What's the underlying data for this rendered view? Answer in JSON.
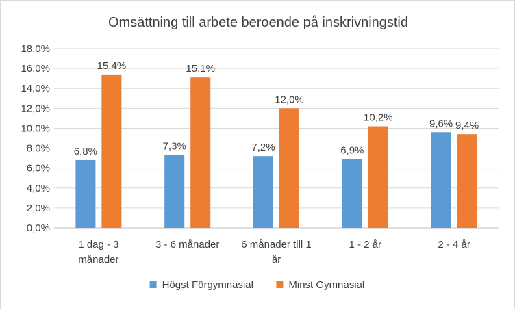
{
  "chart_data": {
    "type": "bar",
    "title": "Omsättning till arbete beroende på inskrivningstid",
    "categories": [
      [
        "1 dag - 3",
        "månader"
      ],
      [
        "3 - 6 månader"
      ],
      [
        "6 månader till 1",
        "år"
      ],
      [
        "1 - 2 år"
      ],
      [
        "2 - 4 år"
      ]
    ],
    "series": [
      {
        "name": "Högst Förgymnasial",
        "color": "#5b9bd5",
        "values": [
          6.8,
          7.3,
          7.2,
          6.9,
          9.6
        ],
        "labels": [
          "6,8%",
          "7,3%",
          "7,2%",
          "6,9%",
          "9,6%"
        ]
      },
      {
        "name": "Minst Gymnasial",
        "color": "#ed7d31",
        "values": [
          15.4,
          15.1,
          12.0,
          10.2,
          9.4
        ],
        "labels": [
          "15,4%",
          "15,1%",
          "12,0%",
          "10,2%",
          "9,4%"
        ]
      }
    ],
    "ylim": [
      0,
      18
    ],
    "yticks": [
      "0,0%",
      "2,0%",
      "4,0%",
      "6,0%",
      "8,0%",
      "10,0%",
      "12,0%",
      "14,0%",
      "16,0%",
      "18,0%"
    ],
    "grid": true,
    "legend_position": "bottom"
  }
}
